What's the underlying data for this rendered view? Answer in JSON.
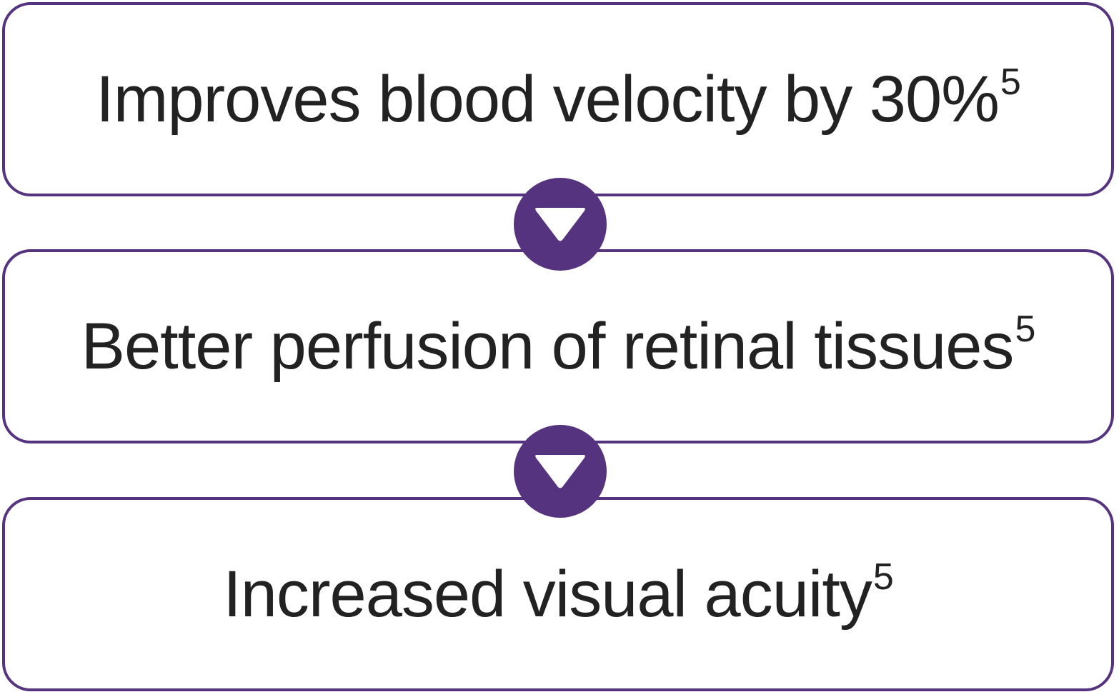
{
  "colors": {
    "accent": "#55337f",
    "text": "#222222",
    "background": "#ffffff"
  },
  "steps": [
    {
      "text": "Improves blood velocity by 30%",
      "ref": "5"
    },
    {
      "text": "Better perfusion of retinal tissues",
      "ref": "5"
    },
    {
      "text": "Increased visual acuity",
      "ref": "5"
    }
  ],
  "connectors": [
    {
      "icon": "arrow-down-icon"
    },
    {
      "icon": "arrow-down-icon"
    }
  ]
}
